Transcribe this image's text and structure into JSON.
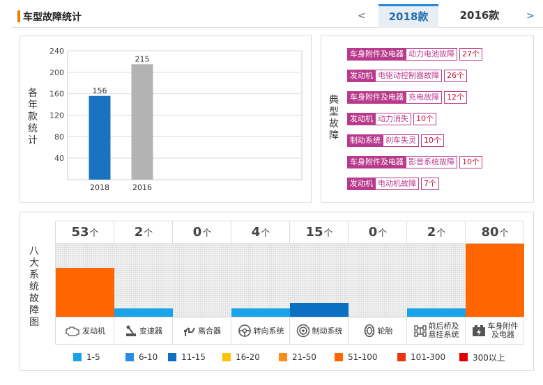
{
  "header": {
    "title": "车型故障统计",
    "prev": "<",
    "next": ">",
    "tabs": [
      "2018款",
      "2016款"
    ]
  },
  "chart_data": {
    "type": "bar",
    "ylabel": "各年款统计",
    "categories": [
      "2018",
      "2016"
    ],
    "values": [
      156,
      215
    ],
    "colors": [
      "#1a73c0",
      "#b3b3b3"
    ],
    "ylim": [
      0,
      240
    ],
    "yticks": [
      40,
      80,
      120,
      160,
      200,
      240
    ]
  },
  "faults": {
    "label": "典型故障",
    "items": [
      {
        "category": "车身附件及电器",
        "name": "动力电池故障",
        "count": "27个"
      },
      {
        "category": "发动机",
        "name": "电驱动控制器故障",
        "count": "26个"
      },
      {
        "category": "车身附件及电器",
        "name": "充电故障",
        "count": "12个"
      },
      {
        "category": "发动机",
        "name": "动力消失",
        "count": "10个"
      },
      {
        "category": "制动系统",
        "name": "刹车失灵",
        "count": "10个"
      },
      {
        "category": "车身附件及电器",
        "name": "影音系统故障",
        "count": "10个"
      },
      {
        "category": "发动机",
        "name": "电动机故障",
        "count": "7个"
      }
    ]
  },
  "systems": {
    "label": "八大系统故障图",
    "unit": "个",
    "max": 80,
    "items": [
      {
        "name": "发动机",
        "count": 53,
        "icon": "engine-icon",
        "color": "#ff6600"
      },
      {
        "name": "变速器",
        "count": 2,
        "icon": "gear-shift-icon",
        "color": "#1aa3e8"
      },
      {
        "name": "离合器",
        "count": 0,
        "icon": "clutch-icon",
        "color": "#1aa3e8"
      },
      {
        "name": "转向系统",
        "count": 4,
        "icon": "steering-wheel-icon",
        "color": "#1aa3e8"
      },
      {
        "name": "制动系统",
        "count": 15,
        "icon": "brake-disc-icon",
        "color": "#0b6fc2"
      },
      {
        "name": "轮胎",
        "count": 0,
        "icon": "tire-icon",
        "color": "#1aa3e8"
      },
      {
        "name": "前后桥及悬挂系统",
        "count": 2,
        "icon": "axle-icon",
        "color": "#1aa3e8"
      },
      {
        "name": "车身附件及电器",
        "count": 80,
        "icon": "battery-icon",
        "color": "#ff6600"
      }
    ]
  },
  "legend": [
    {
      "label": "1-5",
      "color": "#1aa3e8"
    },
    {
      "label": "6-10",
      "color": "#2b8ae6"
    },
    {
      "label": "11-15",
      "color": "#0b6fc2"
    },
    {
      "label": "16-20",
      "color": "#ffc000"
    },
    {
      "label": "21-50",
      "color": "#ff8c1a"
    },
    {
      "label": "51-100",
      "color": "#ff6600"
    },
    {
      "label": "101-300",
      "color": "#ee3311"
    },
    {
      "label": "300以上",
      "color": "#e00000"
    }
  ]
}
